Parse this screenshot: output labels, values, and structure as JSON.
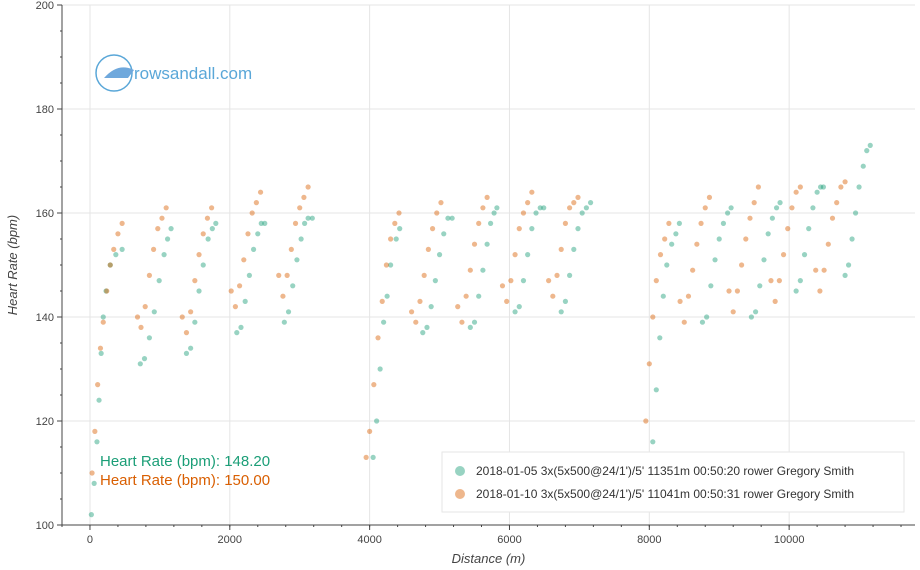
{
  "chart_data": {
    "type": "scatter",
    "xlabel": "Distance (m)",
    "ylabel": "Heart Rate (bpm)",
    "xlim": [
      -400,
      11800
    ],
    "ylim": [
      100,
      200
    ],
    "x_ticks": [
      0,
      2000,
      4000,
      6000,
      8000,
      10000
    ],
    "y_ticks": [
      100,
      120,
      140,
      160,
      180,
      200
    ],
    "grid": true,
    "legend_position": "bottom-right",
    "series": [
      {
        "name": "2018-01-05 3x(5x500@24/1')/5' 11351m 00:50:20 rower Gregory Smith",
        "color": "#1b9e77",
        "points": [
          [
            20,
            102
          ],
          [
            60,
            108
          ],
          [
            100,
            116
          ],
          [
            130,
            124
          ],
          [
            160,
            133
          ],
          [
            190,
            140
          ],
          [
            230,
            145
          ],
          [
            290,
            150
          ],
          [
            370,
            152
          ],
          [
            460,
            153
          ],
          [
            720,
            131
          ],
          [
            780,
            132
          ],
          [
            850,
            136
          ],
          [
            920,
            141
          ],
          [
            990,
            147
          ],
          [
            1060,
            152
          ],
          [
            1110,
            155
          ],
          [
            1160,
            157
          ],
          [
            1380,
            133
          ],
          [
            1440,
            134
          ],
          [
            1500,
            139
          ],
          [
            1560,
            145
          ],
          [
            1620,
            150
          ],
          [
            1690,
            155
          ],
          [
            1750,
            157
          ],
          [
            1800,
            158
          ],
          [
            2100,
            137
          ],
          [
            2160,
            138
          ],
          [
            2220,
            143
          ],
          [
            2280,
            148
          ],
          [
            2340,
            153
          ],
          [
            2400,
            156
          ],
          [
            2450,
            158
          ],
          [
            2500,
            158
          ],
          [
            2780,
            139
          ],
          [
            2840,
            141
          ],
          [
            2900,
            146
          ],
          [
            2960,
            151
          ],
          [
            3020,
            155
          ],
          [
            3070,
            158
          ],
          [
            3120,
            159
          ],
          [
            3180,
            159
          ],
          [
            4050,
            113
          ],
          [
            4100,
            120
          ],
          [
            4150,
            130
          ],
          [
            4200,
            139
          ],
          [
            4250,
            144
          ],
          [
            4300,
            150
          ],
          [
            4380,
            155
          ],
          [
            4430,
            157
          ],
          [
            4760,
            137
          ],
          [
            4820,
            138
          ],
          [
            4880,
            142
          ],
          [
            4940,
            147
          ],
          [
            5000,
            152
          ],
          [
            5060,
            156
          ],
          [
            5120,
            159
          ],
          [
            5180,
            159
          ],
          [
            5440,
            138
          ],
          [
            5500,
            139
          ],
          [
            5560,
            144
          ],
          [
            5620,
            149
          ],
          [
            5680,
            154
          ],
          [
            5730,
            158
          ],
          [
            5780,
            160
          ],
          [
            5820,
            161
          ],
          [
            6080,
            141
          ],
          [
            6140,
            142
          ],
          [
            6200,
            147
          ],
          [
            6260,
            152
          ],
          [
            6320,
            157
          ],
          [
            6380,
            160
          ],
          [
            6440,
            161
          ],
          [
            6490,
            161
          ],
          [
            6740,
            141
          ],
          [
            6800,
            143
          ],
          [
            6860,
            148
          ],
          [
            6920,
            153
          ],
          [
            6980,
            157
          ],
          [
            7040,
            160
          ],
          [
            7100,
            161
          ],
          [
            7160,
            162
          ],
          [
            8050,
            116
          ],
          [
            8100,
            126
          ],
          [
            8150,
            136
          ],
          [
            8200,
            144
          ],
          [
            8250,
            150
          ],
          [
            8320,
            154
          ],
          [
            8380,
            156
          ],
          [
            8430,
            158
          ],
          [
            8760,
            139
          ],
          [
            8820,
            140
          ],
          [
            8880,
            146
          ],
          [
            8940,
            151
          ],
          [
            9000,
            155
          ],
          [
            9060,
            158
          ],
          [
            9120,
            160
          ],
          [
            9170,
            161
          ],
          [
            9460,
            140
          ],
          [
            9520,
            141
          ],
          [
            9580,
            146
          ],
          [
            9640,
            151
          ],
          [
            9700,
            156
          ],
          [
            9760,
            159
          ],
          [
            9820,
            161
          ],
          [
            9870,
            162
          ],
          [
            10100,
            145
          ],
          [
            10160,
            147
          ],
          [
            10220,
            152
          ],
          [
            10280,
            157
          ],
          [
            10340,
            161
          ],
          [
            10400,
            164
          ],
          [
            10450,
            165
          ],
          [
            10490,
            165
          ],
          [
            10800,
            148
          ],
          [
            10850,
            150
          ],
          [
            10900,
            155
          ],
          [
            10950,
            160
          ],
          [
            11000,
            165
          ],
          [
            11060,
            169
          ],
          [
            11110,
            172
          ],
          [
            11160,
            173
          ]
        ]
      },
      {
        "name": "2018-01-10 3x(5x500@24/1')/5' 11041m 00:50:31 rower Gregory Smith",
        "color": "#d95f02",
        "points": [
          [
            30,
            110
          ],
          [
            70,
            118
          ],
          [
            110,
            127
          ],
          [
            150,
            134
          ],
          [
            190,
            139
          ],
          [
            240,
            145
          ],
          [
            290,
            150
          ],
          [
            340,
            153
          ],
          [
            400,
            156
          ],
          [
            460,
            158
          ],
          [
            680,
            140
          ],
          [
            730,
            138
          ],
          [
            790,
            142
          ],
          [
            850,
            148
          ],
          [
            910,
            153
          ],
          [
            970,
            157
          ],
          [
            1030,
            159
          ],
          [
            1090,
            161
          ],
          [
            1320,
            140
          ],
          [
            1380,
            137
          ],
          [
            1440,
            141
          ],
          [
            1500,
            147
          ],
          [
            1560,
            152
          ],
          [
            1620,
            156
          ],
          [
            1680,
            159
          ],
          [
            1740,
            161
          ],
          [
            2020,
            145
          ],
          [
            2080,
            142
          ],
          [
            2140,
            146
          ],
          [
            2200,
            151
          ],
          [
            2260,
            156
          ],
          [
            2320,
            160
          ],
          [
            2380,
            162
          ],
          [
            2440,
            164
          ],
          [
            2700,
            148
          ],
          [
            2760,
            144
          ],
          [
            2820,
            148
          ],
          [
            2880,
            153
          ],
          [
            2940,
            158
          ],
          [
            3000,
            161
          ],
          [
            3060,
            163
          ],
          [
            3120,
            165
          ],
          [
            3950,
            113
          ],
          [
            4000,
            118
          ],
          [
            4060,
            127
          ],
          [
            4120,
            136
          ],
          [
            4180,
            143
          ],
          [
            4240,
            150
          ],
          [
            4300,
            155
          ],
          [
            4360,
            158
          ],
          [
            4420,
            160
          ],
          [
            4600,
            141
          ],
          [
            4660,
            139
          ],
          [
            4720,
            143
          ],
          [
            4780,
            148
          ],
          [
            4840,
            153
          ],
          [
            4900,
            157
          ],
          [
            4960,
            160
          ],
          [
            5020,
            162
          ],
          [
            5260,
            142
          ],
          [
            5320,
            139
          ],
          [
            5380,
            144
          ],
          [
            5440,
            149
          ],
          [
            5500,
            154
          ],
          [
            5560,
            158
          ],
          [
            5620,
            161
          ],
          [
            5680,
            163
          ],
          [
            5900,
            146
          ],
          [
            5960,
            143
          ],
          [
            6020,
            147
          ],
          [
            6080,
            152
          ],
          [
            6140,
            157
          ],
          [
            6200,
            160
          ],
          [
            6260,
            162
          ],
          [
            6320,
            164
          ],
          [
            6560,
            147
          ],
          [
            6620,
            144
          ],
          [
            6680,
            148
          ],
          [
            6740,
            153
          ],
          [
            6800,
            158
          ],
          [
            6860,
            161
          ],
          [
            6920,
            162
          ],
          [
            6980,
            163
          ],
          [
            7900,
            113
          ],
          [
            7950,
            120
          ],
          [
            8000,
            131
          ],
          [
            8050,
            140
          ],
          [
            8100,
            147
          ],
          [
            8160,
            152
          ],
          [
            8220,
            155
          ],
          [
            8280,
            158
          ],
          [
            8440,
            143
          ],
          [
            8500,
            139
          ],
          [
            8560,
            144
          ],
          [
            8620,
            149
          ],
          [
            8680,
            154
          ],
          [
            8740,
            158
          ],
          [
            8800,
            161
          ],
          [
            8860,
            163
          ],
          [
            9140,
            145
          ],
          [
            9200,
            141
          ],
          [
            9260,
            145
          ],
          [
            9320,
            150
          ],
          [
            9380,
            155
          ],
          [
            9440,
            159
          ],
          [
            9500,
            162
          ],
          [
            9560,
            165
          ],
          [
            9740,
            147
          ],
          [
            9800,
            143
          ],
          [
            9860,
            147
          ],
          [
            9920,
            152
          ],
          [
            9980,
            157
          ],
          [
            10040,
            161
          ],
          [
            10100,
            164
          ],
          [
            10160,
            165
          ],
          [
            10380,
            149
          ],
          [
            10440,
            145
          ],
          [
            10500,
            149
          ],
          [
            10560,
            154
          ],
          [
            10620,
            159
          ],
          [
            10680,
            162
          ],
          [
            10740,
            165
          ],
          [
            10800,
            166
          ]
        ]
      }
    ],
    "readouts": [
      {
        "text": "Heart Rate (bpm): 148.20",
        "color": "#1b9e77"
      },
      {
        "text": "Heart Rate (bpm): 150.00",
        "color": "#d95f02"
      }
    ]
  },
  "logo": {
    "text": "rowsandall.com"
  }
}
